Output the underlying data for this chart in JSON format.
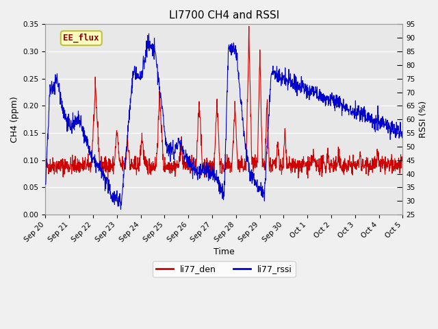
{
  "title": "LI7700 CH4 and RSSI",
  "xlabel": "Time",
  "ylabel_left": "CH4 (ppm)",
  "ylabel_right": "RSSI (%)",
  "ylim_left": [
    0.0,
    0.35
  ],
  "ylim_right": [
    25,
    95
  ],
  "yticks_left": [
    0.0,
    0.05,
    0.1,
    0.15,
    0.2,
    0.25,
    0.3,
    0.35
  ],
  "yticks_right": [
    25,
    30,
    35,
    40,
    45,
    50,
    55,
    60,
    65,
    70,
    75,
    80,
    85,
    90,
    95
  ],
  "bg_color": "#f0f0f0",
  "plot_bg_color": "#e8e8e8",
  "grid_color": "#ffffff",
  "label_box_text": "EE_flux",
  "label_box_facecolor": "#ffffc0",
  "label_box_edgecolor": "#c0c040",
  "label_text_color": "#8b0000",
  "line_ch4_color": "#cc0000",
  "line_rssi_color": "#0000cc",
  "legend_label_ch4": "li77_den",
  "legend_label_rssi": "li77_rssi",
  "x_tick_labels": [
    "Sep 20",
    "Sep 21",
    "Sep 22",
    "Sep 23",
    "Sep 24",
    "Sep 25",
    "Sep 26",
    "Sep 27",
    "Sep 28",
    "Sep 29",
    "Sep 30",
    "Oct 1",
    "Oct 2",
    "Oct 3",
    "Oct 4",
    "Oct 5"
  ],
  "n_ticks": 16
}
